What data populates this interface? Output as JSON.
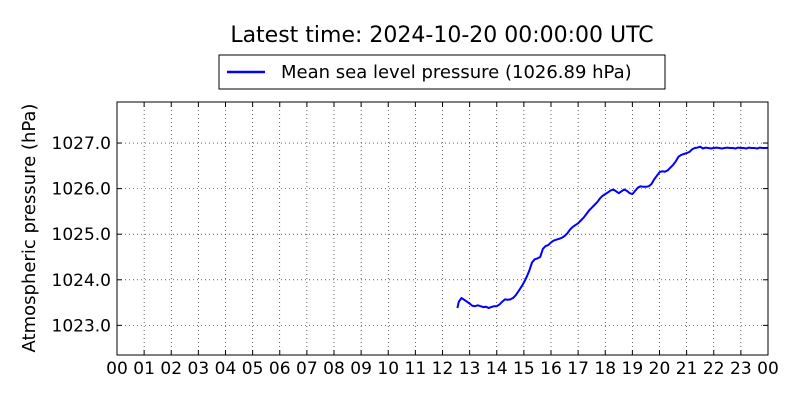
{
  "chart_data": {
    "type": "line",
    "title": "Latest time: 2024-10-20 00:00:00 UTC",
    "xlabel": "",
    "ylabel": "Atmospheric pressure (hPa)",
    "x_unit": "hour (UTC)",
    "xlim": [
      0,
      24
    ],
    "ylim": [
      1022.35,
      1027.9
    ],
    "x_ticks": [
      0,
      1,
      2,
      3,
      4,
      5,
      6,
      7,
      8,
      9,
      10,
      11,
      12,
      13,
      14,
      15,
      16,
      17,
      18,
      19,
      20,
      21,
      22,
      23,
      24
    ],
    "x_tick_labels": [
      "00",
      "01",
      "02",
      "03",
      "04",
      "05",
      "06",
      "07",
      "08",
      "09",
      "10",
      "11",
      "12",
      "13",
      "14",
      "15",
      "16",
      "17",
      "18",
      "19",
      "20",
      "21",
      "22",
      "23",
      "00"
    ],
    "y_ticks": [
      1023.0,
      1024.0,
      1025.0,
      1026.0,
      1027.0
    ],
    "y_tick_labels": [
      "1023.0",
      "1024.0",
      "1025.0",
      "1026.0",
      "1027.0"
    ],
    "grid": true,
    "legend_position": "top-center (above plot)",
    "series": [
      {
        "name": "Mean sea level pressure (1026.89 hPa)",
        "color": "#0000ff",
        "x": [
          12.55,
          12.6,
          12.7,
          12.8,
          12.9,
          13.0,
          13.1,
          13.2,
          13.3,
          13.4,
          13.5,
          13.6,
          13.7,
          13.8,
          13.9,
          14.0,
          14.1,
          14.2,
          14.3,
          14.4,
          14.5,
          14.6,
          14.7,
          14.8,
          14.9,
          15.0,
          15.1,
          15.2,
          15.3,
          15.4,
          15.5,
          15.6,
          15.7,
          15.8,
          15.9,
          16.0,
          16.1,
          16.2,
          16.3,
          16.4,
          16.5,
          16.6,
          16.7,
          16.8,
          16.9,
          17.0,
          17.1,
          17.2,
          17.3,
          17.4,
          17.5,
          17.6,
          17.7,
          17.8,
          17.9,
          18.0,
          18.1,
          18.2,
          18.3,
          18.4,
          18.5,
          18.6,
          18.7,
          18.8,
          18.9,
          19.0,
          19.1,
          19.2,
          19.3,
          19.4,
          19.5,
          19.6,
          19.7,
          19.8,
          19.9,
          20.0,
          20.1,
          20.2,
          20.3,
          20.4,
          20.5,
          20.6,
          20.7,
          20.8,
          20.9,
          21.0,
          21.1,
          21.2,
          21.3,
          21.4,
          21.5,
          21.6,
          21.7,
          21.8,
          21.9,
          22.0,
          22.1,
          22.2,
          22.3,
          22.4,
          22.5,
          22.6,
          22.7,
          22.8,
          22.9,
          23.0,
          23.1,
          23.2,
          23.3,
          23.4,
          23.5,
          23.6,
          23.7,
          23.8,
          23.9,
          24.0
        ],
        "y": [
          1023.38,
          1023.52,
          1023.6,
          1023.56,
          1023.52,
          1023.48,
          1023.43,
          1023.42,
          1023.44,
          1023.42,
          1023.4,
          1023.41,
          1023.38,
          1023.4,
          1023.42,
          1023.42,
          1023.46,
          1023.52,
          1023.57,
          1023.56,
          1023.57,
          1023.6,
          1023.66,
          1023.75,
          1023.84,
          1023.94,
          1024.06,
          1024.2,
          1024.38,
          1024.45,
          1024.47,
          1024.5,
          1024.68,
          1024.74,
          1024.76,
          1024.82,
          1024.86,
          1024.88,
          1024.9,
          1024.92,
          1024.96,
          1025.02,
          1025.1,
          1025.16,
          1025.2,
          1025.24,
          1025.3,
          1025.36,
          1025.44,
          1025.52,
          1025.58,
          1025.64,
          1025.7,
          1025.78,
          1025.84,
          1025.88,
          1025.92,
          1025.96,
          1025.98,
          1025.94,
          1025.9,
          1025.94,
          1025.98,
          1025.95,
          1025.9,
          1025.88,
          1025.95,
          1026.02,
          1026.05,
          1026.04,
          1026.04,
          1026.05,
          1026.1,
          1026.2,
          1026.28,
          1026.36,
          1026.38,
          1026.37,
          1026.4,
          1026.46,
          1026.52,
          1026.6,
          1026.7,
          1026.74,
          1026.76,
          1026.78,
          1026.8,
          1026.86,
          1026.89,
          1026.9,
          1026.92,
          1026.88,
          1026.9,
          1026.89,
          1026.88,
          1026.89,
          1026.9,
          1026.89,
          1026.88,
          1026.89,
          1026.9,
          1026.89,
          1026.89,
          1026.88,
          1026.9,
          1026.89,
          1026.89,
          1026.88,
          1026.9,
          1026.89,
          1026.89,
          1026.88,
          1026.9,
          1026.89,
          1026.89,
          1026.89
        ]
      }
    ]
  }
}
